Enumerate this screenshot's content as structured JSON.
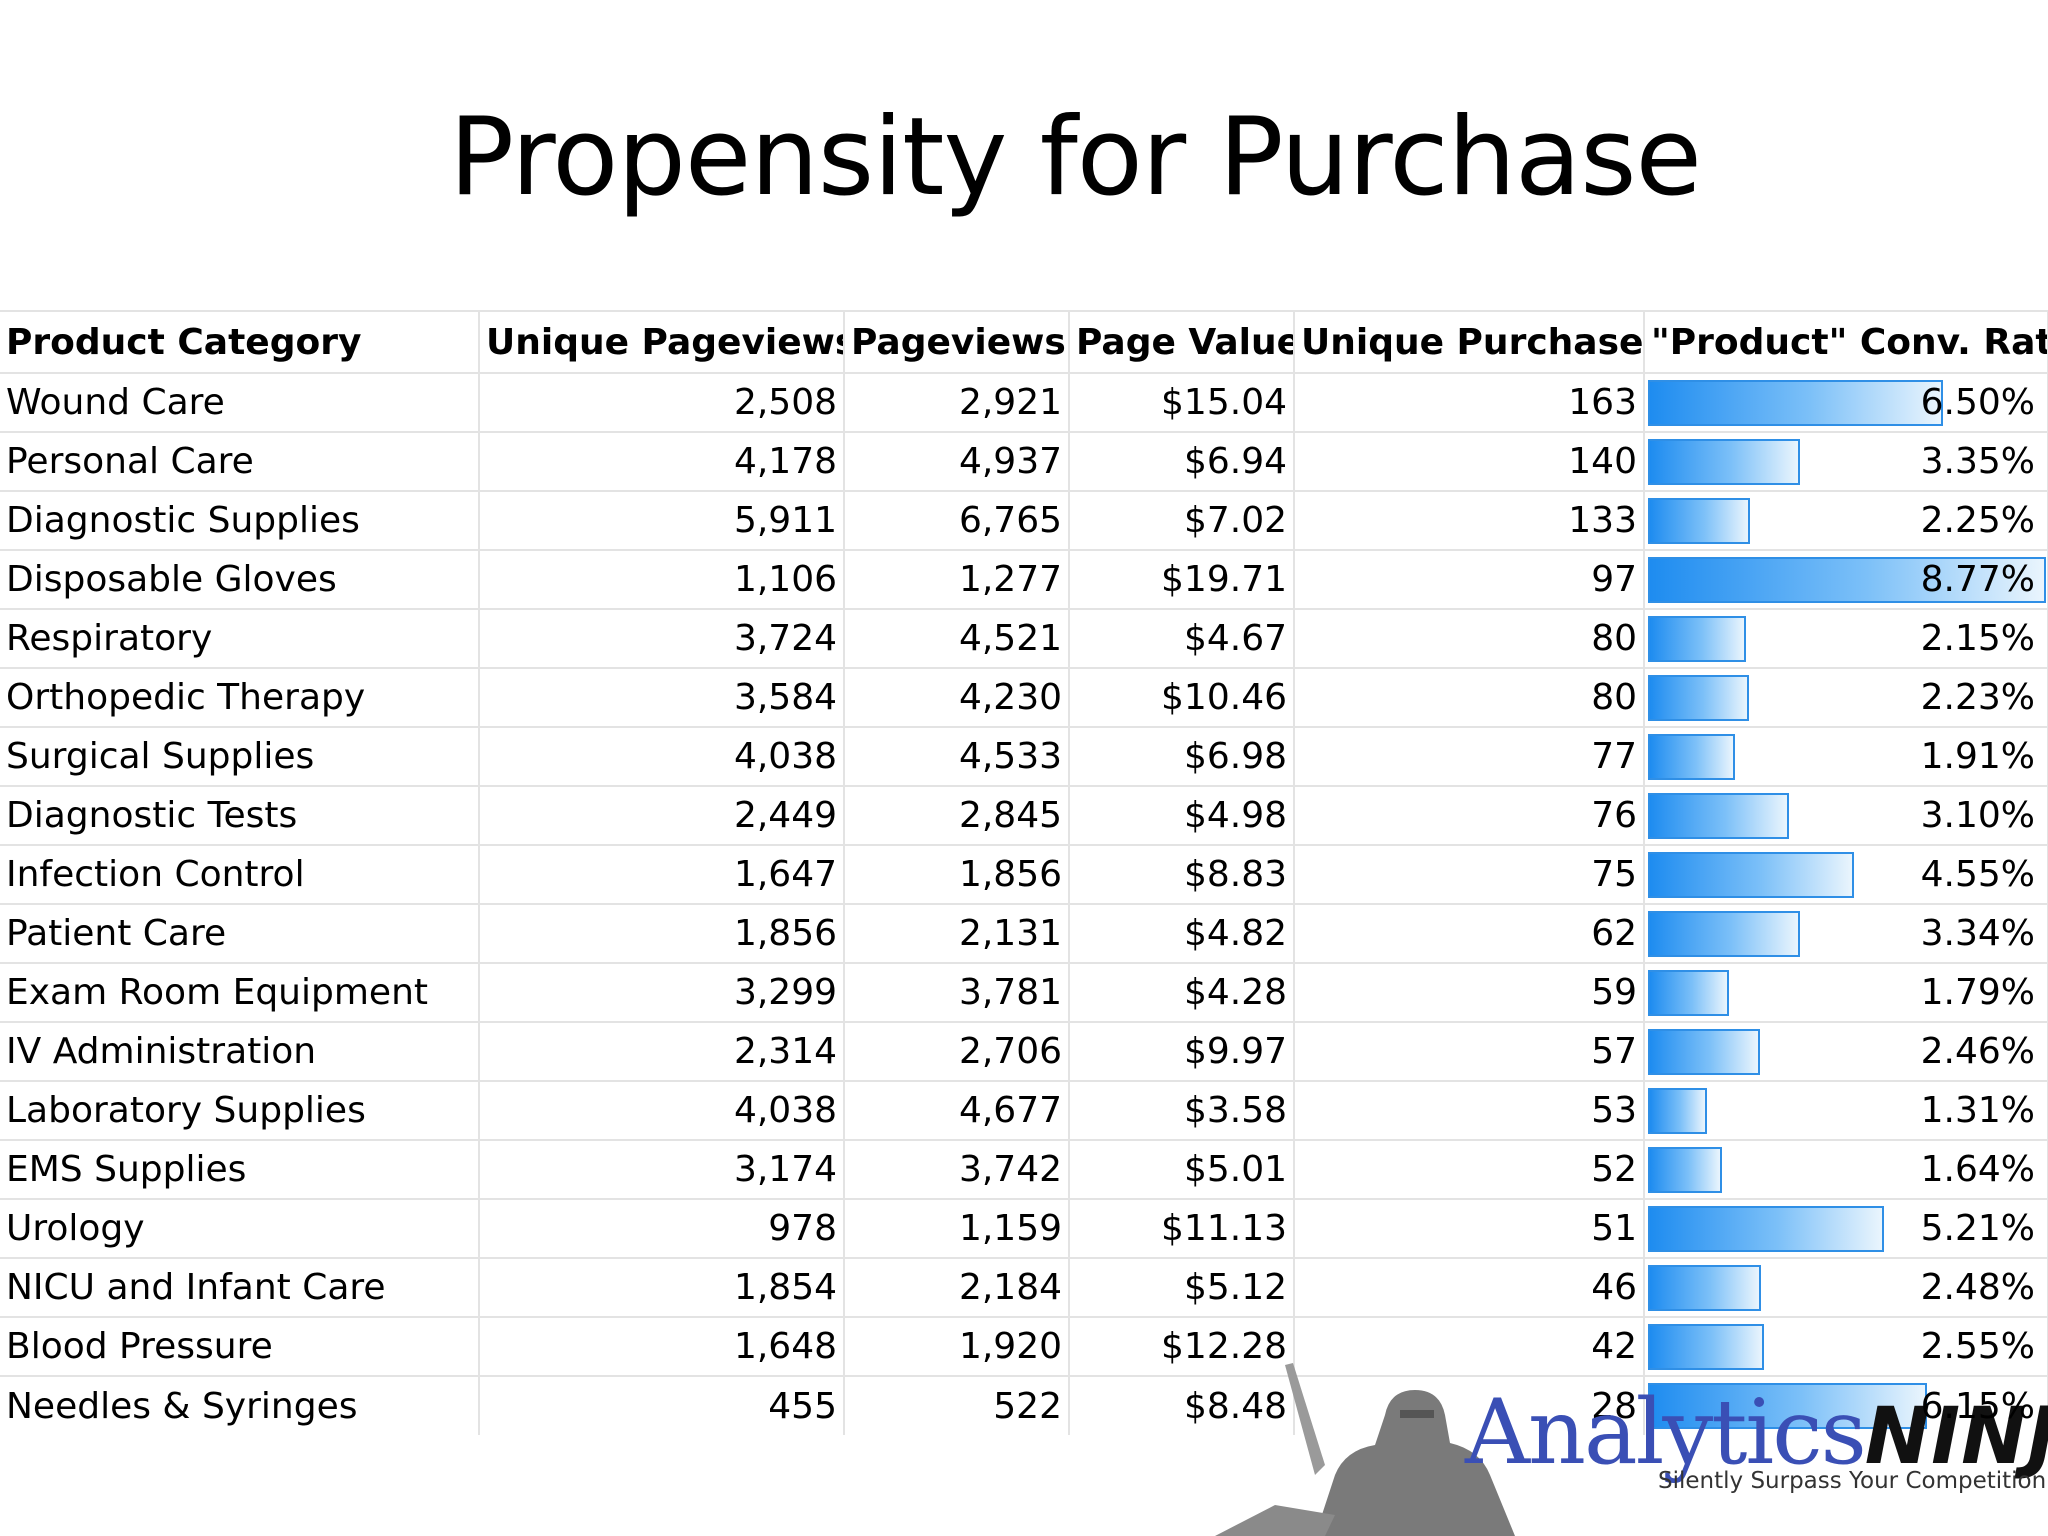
{
  "slide": {
    "title": "Propensity for Purchase"
  },
  "table": {
    "headers": [
      "Product Category",
      "Unique Pageviews",
      "Pageviews",
      "Page Value",
      "Unique Purchases",
      "\"Product\" Conv. Rate"
    ],
    "rows": [
      {
        "category": "Wound Care",
        "unique_pageviews": "2,508",
        "pageviews": "2,921",
        "page_value": "$15.04",
        "unique_purchases": "163",
        "conv_rate": "6.50%",
        "conv_value": 6.5
      },
      {
        "category": "Personal Care",
        "unique_pageviews": "4,178",
        "pageviews": "4,937",
        "page_value": "$6.94",
        "unique_purchases": "140",
        "conv_rate": "3.35%",
        "conv_value": 3.35
      },
      {
        "category": "Diagnostic Supplies",
        "unique_pageviews": "5,911",
        "pageviews": "6,765",
        "page_value": "$7.02",
        "unique_purchases": "133",
        "conv_rate": "2.25%",
        "conv_value": 2.25
      },
      {
        "category": "Disposable Gloves",
        "unique_pageviews": "1,106",
        "pageviews": "1,277",
        "page_value": "$19.71",
        "unique_purchases": "97",
        "conv_rate": "8.77%",
        "conv_value": 8.77
      },
      {
        "category": "Respiratory",
        "unique_pageviews": "3,724",
        "pageviews": "4,521",
        "page_value": "$4.67",
        "unique_purchases": "80",
        "conv_rate": "2.15%",
        "conv_value": 2.15
      },
      {
        "category": "Orthopedic Therapy",
        "unique_pageviews": "3,584",
        "pageviews": "4,230",
        "page_value": "$10.46",
        "unique_purchases": "80",
        "conv_rate": "2.23%",
        "conv_value": 2.23
      },
      {
        "category": "Surgical Supplies",
        "unique_pageviews": "4,038",
        "pageviews": "4,533",
        "page_value": "$6.98",
        "unique_purchases": "77",
        "conv_rate": "1.91%",
        "conv_value": 1.91
      },
      {
        "category": "Diagnostic Tests",
        "unique_pageviews": "2,449",
        "pageviews": "2,845",
        "page_value": "$4.98",
        "unique_purchases": "76",
        "conv_rate": "3.10%",
        "conv_value": 3.1
      },
      {
        "category": "Infection Control",
        "unique_pageviews": "1,647",
        "pageviews": "1,856",
        "page_value": "$8.83",
        "unique_purchases": "75",
        "conv_rate": "4.55%",
        "conv_value": 4.55
      },
      {
        "category": "Patient Care",
        "unique_pageviews": "1,856",
        "pageviews": "2,131",
        "page_value": "$4.82",
        "unique_purchases": "62",
        "conv_rate": "3.34%",
        "conv_value": 3.34
      },
      {
        "category": "Exam Room Equipment",
        "unique_pageviews": "3,299",
        "pageviews": "3,781",
        "page_value": "$4.28",
        "unique_purchases": "59",
        "conv_rate": "1.79%",
        "conv_value": 1.79
      },
      {
        "category": "IV Administration",
        "unique_pageviews": "2,314",
        "pageviews": "2,706",
        "page_value": "$9.97",
        "unique_purchases": "57",
        "conv_rate": "2.46%",
        "conv_value": 2.46
      },
      {
        "category": "Laboratory Supplies",
        "unique_pageviews": "4,038",
        "pageviews": "4,677",
        "page_value": "$3.58",
        "unique_purchases": "53",
        "conv_rate": "1.31%",
        "conv_value": 1.31
      },
      {
        "category": "EMS Supplies",
        "unique_pageviews": "3,174",
        "pageviews": "3,742",
        "page_value": "$5.01",
        "unique_purchases": "52",
        "conv_rate": "1.64%",
        "conv_value": 1.64
      },
      {
        "category": "Urology",
        "unique_pageviews": "978",
        "pageviews": "1,159",
        "page_value": "$11.13",
        "unique_purchases": "51",
        "conv_rate": "5.21%",
        "conv_value": 5.21
      },
      {
        "category": "NICU and Infant Care",
        "unique_pageviews": "1,854",
        "pageviews": "2,184",
        "page_value": "$5.12",
        "unique_purchases": "46",
        "conv_rate": "2.48%",
        "conv_value": 2.48
      },
      {
        "category": "Blood Pressure",
        "unique_pageviews": "1,648",
        "pageviews": "1,920",
        "page_value": "$12.28",
        "unique_purchases": "42",
        "conv_rate": "2.55%",
        "conv_value": 2.55
      },
      {
        "category": "Needles & Syringes",
        "unique_pageviews": "455",
        "pageviews": "522",
        "page_value": "$8.48",
        "unique_purchases": "28",
        "conv_rate": "6.15%",
        "conv_value": 6.15
      }
    ]
  },
  "logo": {
    "brand_first": "Analytics",
    "brand_second": "NINJA",
    "tagline": "Silently Surpass Your Competition",
    "icon": "ninja-silhouette-icon"
  },
  "colors": {
    "bar_start": "#1e8cf0",
    "bar_end": "#eaf5fd",
    "bar_border": "#2f8fe6",
    "grid": "#e3e3e3"
  }
}
